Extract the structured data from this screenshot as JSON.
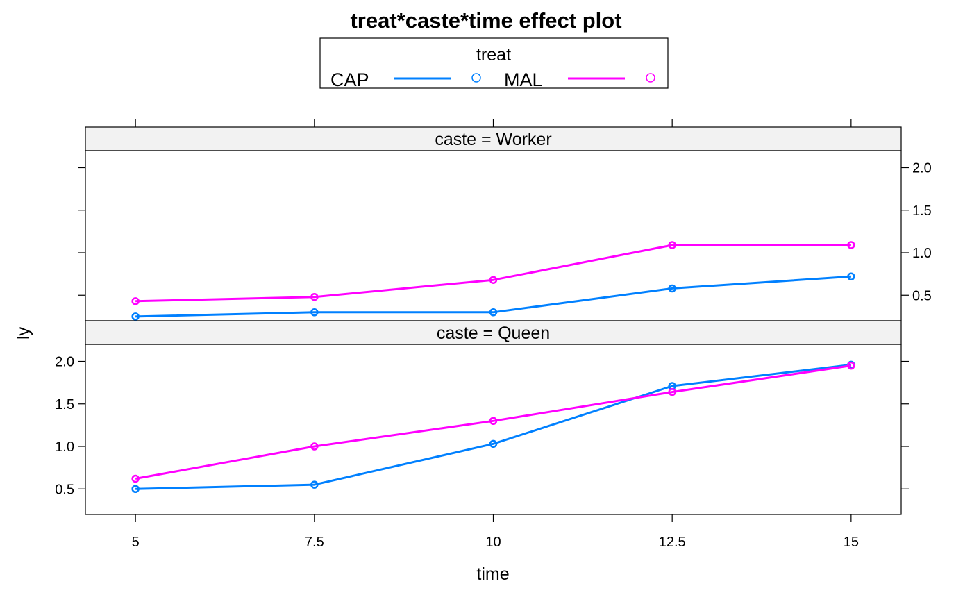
{
  "chart_data": {
    "type": "line",
    "title": "treat*caste*time effect plot",
    "xlabel": "time",
    "ylabel": "ly",
    "x": [
      5,
      7.5,
      10,
      12.5,
      15
    ],
    "x_tick_labels": [
      "5",
      "7.5",
      "10",
      "12.5",
      "15"
    ],
    "xlim": [
      4.3,
      15.7
    ],
    "y_tick_labels": [
      "0.5",
      "1.0",
      "1.5",
      "2.0"
    ],
    "y_ticks": [
      0.5,
      1.0,
      1.5,
      2.0
    ],
    "legend": {
      "title": "treat",
      "position": "top-center",
      "entries": [
        "CAP",
        "MAL"
      ]
    },
    "panels": [
      {
        "strip": "caste = Worker",
        "ylim": [
          0.2,
          2.2
        ],
        "y_axis_side": "right",
        "series": [
          {
            "name": "CAP",
            "values": [
              0.25,
              0.3,
              0.3,
              0.58,
              0.72
            ]
          },
          {
            "name": "MAL",
            "values": [
              0.43,
              0.48,
              0.68,
              1.09,
              1.09
            ]
          }
        ]
      },
      {
        "strip": "caste = Queen",
        "ylim": [
          0.2,
          2.2
        ],
        "y_axis_side": "left",
        "series": [
          {
            "name": "CAP",
            "values": [
              0.5,
              0.55,
              1.03,
              1.71,
              1.96
            ]
          },
          {
            "name": "MAL",
            "values": [
              0.62,
              1.0,
              1.3,
              1.64,
              1.95
            ]
          }
        ]
      }
    ],
    "colors": {
      "CAP": "#0080ff",
      "MAL": "#ff00ff"
    },
    "grid": false
  }
}
